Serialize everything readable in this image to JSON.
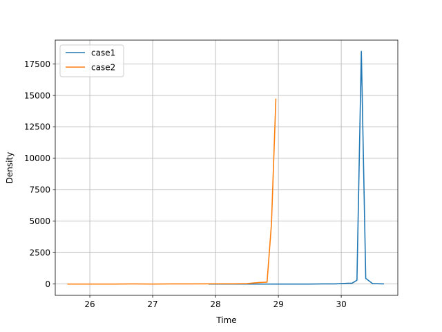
{
  "chart_data": {
    "type": "line",
    "title": "",
    "xlabel": "Time",
    "ylabel": "Density",
    "xlim": [
      25.45,
      30.9
    ],
    "ylim": [
      -900,
      19400
    ],
    "xticks": [
      26,
      27,
      28,
      29,
      30
    ],
    "yticks": [
      0,
      2500,
      5000,
      7500,
      10000,
      12500,
      15000,
      17500
    ],
    "grid": true,
    "legend": "top-left",
    "series": [
      {
        "name": "case1",
        "color": "#1f77b4",
        "x": [
          27.9,
          28.1,
          28.3,
          28.5,
          28.7,
          28.9,
          29.1,
          29.3,
          29.5,
          29.7,
          29.9,
          30.0,
          30.1,
          30.17,
          30.25,
          30.32,
          30.39,
          30.5,
          30.67
        ],
        "y": [
          0,
          0,
          0,
          0,
          0,
          0,
          0,
          0,
          0,
          10,
          10,
          30,
          60,
          60,
          300,
          18500,
          450,
          30,
          10
        ]
      },
      {
        "name": "case2",
        "color": "#ff7f0e",
        "x": [
          25.65,
          26.0,
          26.4,
          26.7,
          27.0,
          27.3,
          27.6,
          28.0,
          28.3,
          28.5,
          28.6,
          28.7,
          28.82,
          28.89,
          28.96
        ],
        "y": [
          0,
          0,
          0,
          10,
          0,
          10,
          10,
          20,
          20,
          30,
          80,
          120,
          150,
          4800,
          14700
        ]
      }
    ]
  }
}
